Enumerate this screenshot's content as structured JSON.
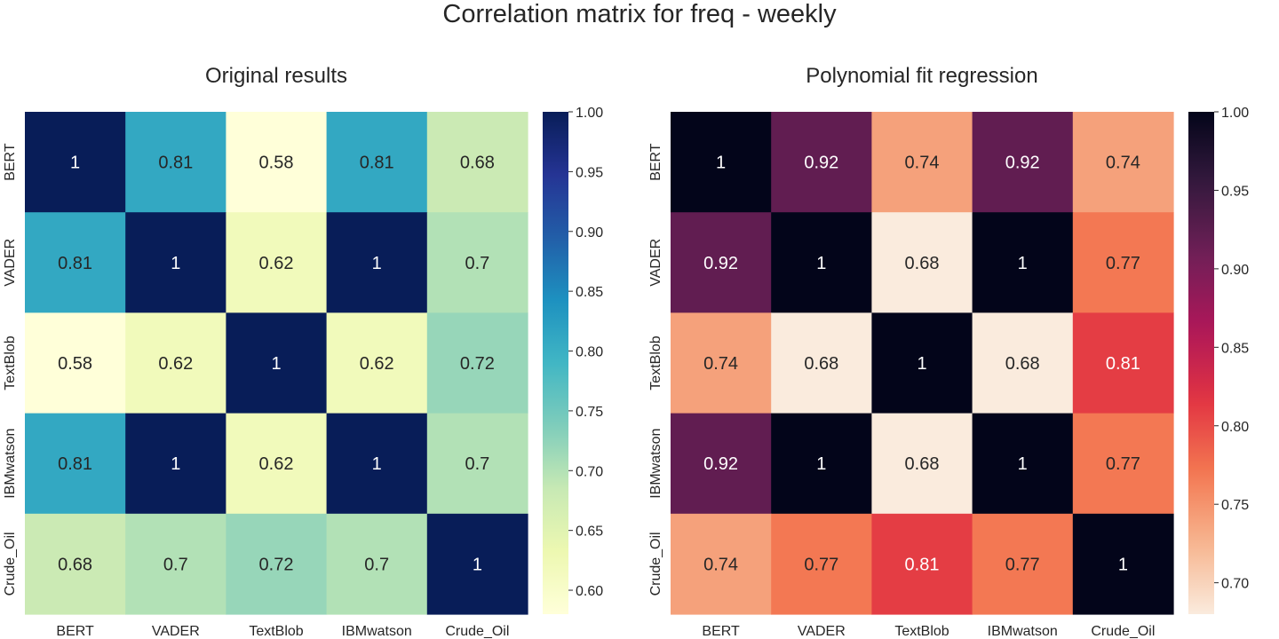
{
  "figure": {
    "title": "Correlation matrix for freq - weekly"
  },
  "chart_data": [
    {
      "type": "heatmap",
      "title": "Original results",
      "colormap": "YlGnBu",
      "x_categories": [
        "BERT",
        "VADER",
        "TextBlob",
        "IBMwatson",
        "Crude_Oil"
      ],
      "y_categories": [
        "BERT",
        "VADER",
        "TextBlob",
        "IBMwatson",
        "Crude_Oil"
      ],
      "values": [
        [
          1,
          0.81,
          0.58,
          0.81,
          0.68
        ],
        [
          0.81,
          1,
          0.62,
          1,
          0.7
        ],
        [
          0.58,
          0.62,
          1,
          0.62,
          0.72
        ],
        [
          0.81,
          1,
          0.62,
          1,
          0.7
        ],
        [
          0.68,
          0.7,
          0.72,
          0.7,
          1
        ]
      ],
      "labels": [
        [
          "1",
          "0.81",
          "0.58",
          "0.81",
          "0.68"
        ],
        [
          "0.81",
          "1",
          "0.62",
          "1",
          "0.7"
        ],
        [
          "0.58",
          "0.62",
          "1",
          "0.62",
          "0.72"
        ],
        [
          "0.81",
          "1",
          "0.62",
          "1",
          "0.7"
        ],
        [
          "0.68",
          "0.7",
          "0.72",
          "0.7",
          "1"
        ]
      ],
      "colorbar": {
        "range": [
          0.58,
          1.0
        ],
        "ticks": [
          1.0,
          0.95,
          0.9,
          0.85,
          0.8,
          0.75,
          0.7,
          0.65,
          0.6
        ],
        "tick_labels": [
          "1.00",
          "0.95",
          "0.90",
          "0.85",
          "0.80",
          "0.75",
          "0.70",
          "0.65",
          "0.60"
        ]
      }
    },
    {
      "type": "heatmap",
      "title": "Polynomial fit regression",
      "colormap": "rocket_r",
      "x_categories": [
        "BERT",
        "VADER",
        "TextBlob",
        "IBMwatson",
        "Crude_Oil"
      ],
      "y_categories": [
        "BERT",
        "VADER",
        "TextBlob",
        "IBMwatson",
        "Crude_Oil"
      ],
      "values": [
        [
          1,
          0.92,
          0.74,
          0.92,
          0.74
        ],
        [
          0.92,
          1,
          0.68,
          1,
          0.77
        ],
        [
          0.74,
          0.68,
          1,
          0.68,
          0.81
        ],
        [
          0.92,
          1,
          0.68,
          1,
          0.77
        ],
        [
          0.74,
          0.77,
          0.81,
          0.77,
          1
        ]
      ],
      "labels": [
        [
          "1",
          "0.92",
          "0.74",
          "0.92",
          "0.74"
        ],
        [
          "0.92",
          "1",
          "0.68",
          "1",
          "0.77"
        ],
        [
          "0.74",
          "0.68",
          "1",
          "0.68",
          "0.81"
        ],
        [
          "0.92",
          "1",
          "0.68",
          "1",
          "0.77"
        ],
        [
          "0.74",
          "0.77",
          "0.81",
          "0.77",
          "1"
        ]
      ],
      "colorbar": {
        "range": [
          0.68,
          1.0
        ],
        "ticks": [
          1.0,
          0.95,
          0.9,
          0.85,
          0.8,
          0.75,
          0.7
        ],
        "tick_labels": [
          "1.00",
          "0.95",
          "0.90",
          "0.85",
          "0.80",
          "0.75",
          "0.70"
        ]
      }
    }
  ]
}
